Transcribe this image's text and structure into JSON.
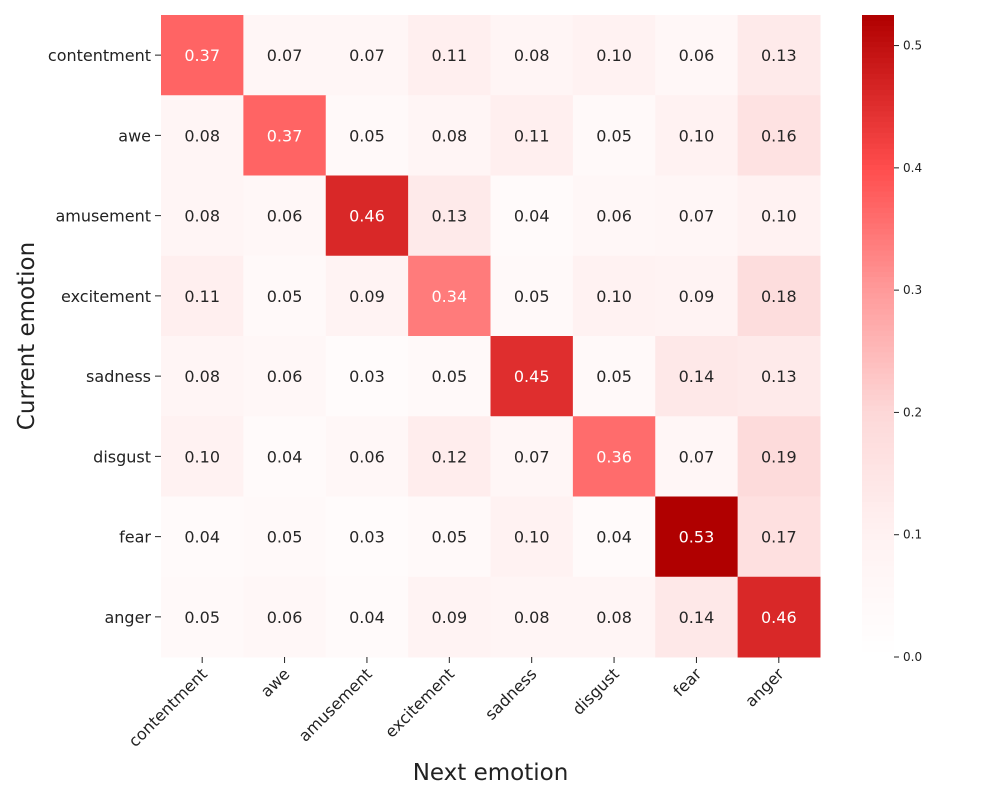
{
  "chart_data": {
    "type": "heatmap",
    "title": "",
    "xlabel": "Next emotion",
    "ylabel": "Current emotion",
    "x_categories": [
      "contentment",
      "awe",
      "amusement",
      "excitement",
      "sadness",
      "disgust",
      "fear",
      "anger"
    ],
    "y_categories": [
      "contentment",
      "awe",
      "amusement",
      "excitement",
      "sadness",
      "disgust",
      "fear",
      "anger"
    ],
    "values": [
      [
        0.37,
        0.07,
        0.07,
        0.11,
        0.08,
        0.1,
        0.06,
        0.13
      ],
      [
        0.08,
        0.37,
        0.05,
        0.08,
        0.11,
        0.05,
        0.1,
        0.16
      ],
      [
        0.08,
        0.06,
        0.46,
        0.13,
        0.04,
        0.06,
        0.07,
        0.1
      ],
      [
        0.11,
        0.05,
        0.09,
        0.34,
        0.05,
        0.1,
        0.09,
        0.18
      ],
      [
        0.08,
        0.06,
        0.03,
        0.05,
        0.45,
        0.05,
        0.14,
        0.13
      ],
      [
        0.1,
        0.04,
        0.06,
        0.12,
        0.07,
        0.36,
        0.07,
        0.19
      ],
      [
        0.04,
        0.05,
        0.03,
        0.05,
        0.1,
        0.04,
        0.53,
        0.17
      ],
      [
        0.05,
        0.06,
        0.04,
        0.09,
        0.08,
        0.08,
        0.14,
        0.46
      ]
    ],
    "colorbar": {
      "range": [
        0,
        0.525
      ],
      "ticks": [
        "0.0",
        "0.1",
        "0.2",
        "0.3",
        "0.4",
        "0.5"
      ],
      "colormap": [
        "#ffffff",
        "#fff2f2",
        "#fdd8d8",
        "#ff9a9a",
        "#ff4d4d",
        "#b00000"
      ]
    },
    "annotation_light_color": "#ffffff",
    "annotation_dark_color": "#262626"
  }
}
